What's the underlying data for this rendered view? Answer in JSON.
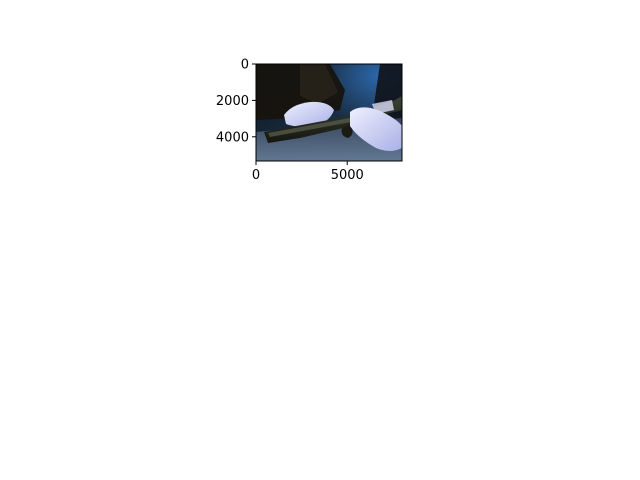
{
  "image_plot": {
    "x_ticks": [
      {
        "value": 0,
        "label": "0"
      },
      {
        "value": 5000,
        "label": "5000"
      }
    ],
    "y_ticks": [
      {
        "value": 0,
        "label": "0"
      },
      {
        "value": 2000,
        "label": "2000"
      },
      {
        "value": 4000,
        "label": "4000"
      }
    ],
    "x_range": [
      0,
      8000
    ],
    "y_range": [
      0,
      5330
    ],
    "y_inverted": true,
    "frame_color": "#000000",
    "subject": "photo-of-gloved-hands-holding-handgun"
  }
}
